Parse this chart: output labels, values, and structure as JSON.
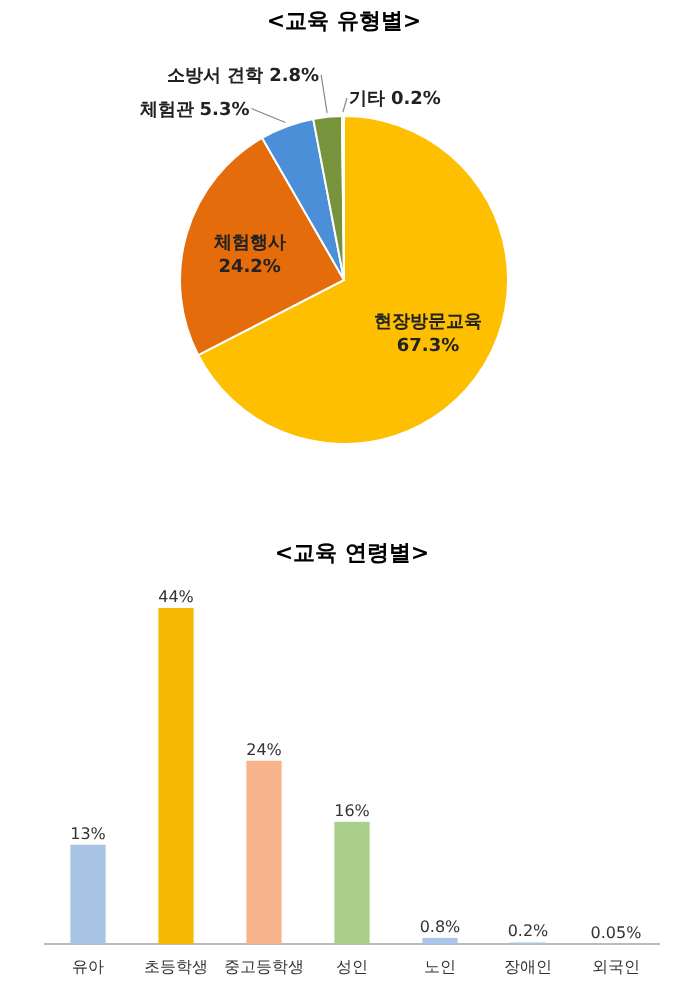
{
  "chart_data": [
    {
      "type": "pie",
      "title": "<교육 유형별>",
      "categories": [
        "현장방문교육",
        "체험행사",
        "체험관",
        "소방서 견학",
        "기타"
      ],
      "values": [
        67.3,
        24.2,
        5.3,
        2.8,
        0.2
      ],
      "colors": [
        "#fdbf00",
        "#e46c0a",
        "#4a8fd8",
        "#77933c",
        "#bfbfbf"
      ],
      "value_labels": [
        "67.3%",
        "24.2%",
        "5.3%",
        "2.8%",
        "0.2%"
      ]
    },
    {
      "type": "bar",
      "title": "<교육 연령별>",
      "categories": [
        "유아",
        "초등학생",
        "중고등학생",
        "성인",
        "노인",
        "장애인",
        "외국인"
      ],
      "values": [
        13,
        44,
        24,
        16,
        0.8,
        0.2,
        0.05
      ],
      "colors": [
        "#a9c4e4",
        "#f5b800",
        "#f7b38a",
        "#a9cf8a",
        "#a9c4e4",
        "#a9c4e4",
        "#a9c4e4"
      ],
      "value_labels": [
        "13%",
        "44%",
        "24%",
        "16%",
        "0.8%",
        "0.2%",
        "0.05%"
      ]
    }
  ]
}
